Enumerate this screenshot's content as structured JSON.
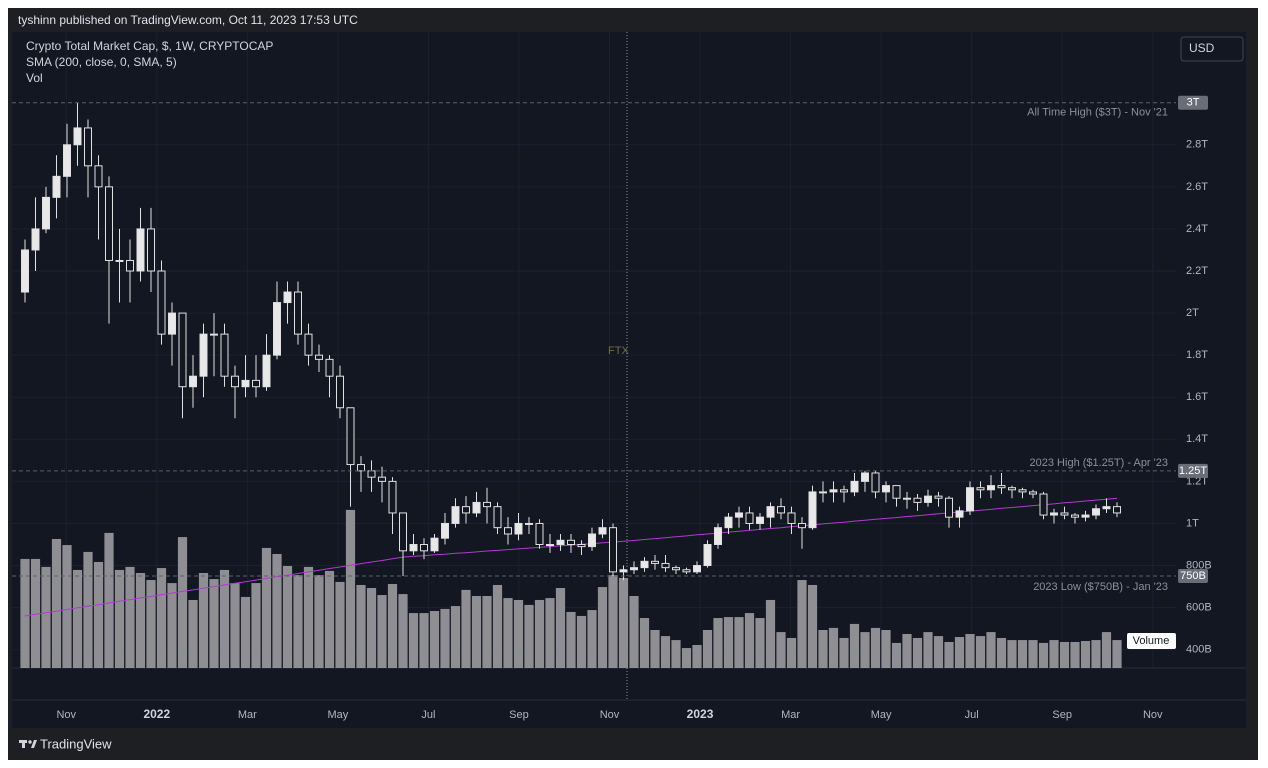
{
  "header": {
    "byline": "tyshinn published on TradingView.com, Oct 11, 2023 17:53 UTC"
  },
  "chart_data": {
    "type": "candlestick",
    "legend": [
      "Crypto Total Market Cap, $, 1W, CRYPTOCAP",
      "SMA (200, close, 0, SMA, 5)",
      "Vol"
    ],
    "currency": "USD",
    "ylim": [
      313000000000.0,
      3336000000000.0
    ],
    "yticks": [
      {
        "value": 400000000000.0,
        "label": "400B"
      },
      {
        "value": 600000000000.0,
        "label": "600B"
      },
      {
        "value": 800000000000.0,
        "label": "800B"
      },
      {
        "value": 1000000000000.0,
        "label": "1T"
      },
      {
        "value": 1200000000000.0,
        "label": "1.2T"
      },
      {
        "value": 1400000000000.0,
        "label": "1.4T"
      },
      {
        "value": 1600000000000.0,
        "label": "1.6T"
      },
      {
        "value": 1800000000000.0,
        "label": "1.8T"
      },
      {
        "value": 2000000000000.0,
        "label": "2T"
      },
      {
        "value": 2200000000000.0,
        "label": "2.2T"
      },
      {
        "value": 2400000000000.0,
        "label": "2.4T"
      },
      {
        "value": 2600000000000.0,
        "label": "2.6T"
      },
      {
        "value": 2800000000000.0,
        "label": "2.8T"
      }
    ],
    "xlim": [
      "2021-10",
      "2023-12"
    ],
    "xticks": [
      {
        "value": "2021-11",
        "label": "Nov"
      },
      {
        "value": "2022-01",
        "label": "2022"
      },
      {
        "value": "2022-03",
        "label": "Mar"
      },
      {
        "value": "2022-05",
        "label": "May"
      },
      {
        "value": "2022-07",
        "label": "Jul"
      },
      {
        "value": "2022-09",
        "label": "Sep"
      },
      {
        "value": "2022-11",
        "label": "Nov"
      },
      {
        "value": "2023-01",
        "label": "2023"
      },
      {
        "value": "2023-03",
        "label": "Mar"
      },
      {
        "value": "2023-05",
        "label": "May"
      },
      {
        "value": "2023-07",
        "label": "Jul"
      },
      {
        "value": "2023-09",
        "label": "Sep"
      },
      {
        "value": "2023-11",
        "label": "Nov"
      }
    ],
    "grid": true,
    "up_color": "#e8e8e8",
    "down_color": "#131722",
    "wick_color": "#e0e0e0",
    "candles": [
      [
        2100000000000.0,
        2350000000000.0,
        2050000000000.0,
        2300000000000.0
      ],
      [
        2300000000000.0,
        2550000000000.0,
        2200000000000.0,
        2400000000000.0
      ],
      [
        2400000000000.0,
        2600000000000.0,
        2380000000000.0,
        2550000000000.0
      ],
      [
        2550000000000.0,
        2750000000000.0,
        2450000000000.0,
        2650000000000.0
      ],
      [
        2650000000000.0,
        2900000000000.0,
        2550000000000.0,
        2800000000000.0
      ],
      [
        2800000000000.0,
        3000000000000.0,
        2700000000000.0,
        2880000000000.0
      ],
      [
        2880000000000.0,
        2920000000000.0,
        2550000000000.0,
        2700000000000.0
      ],
      [
        2700000000000.0,
        2750000000000.0,
        2350000000000.0,
        2600000000000.0
      ],
      [
        2600000000000.0,
        2650000000000.0,
        1950000000000.0,
        2250000000000.0
      ],
      [
        2250000000000.0,
        2400000000000.0,
        2050000000000.0,
        2250000000000.0
      ],
      [
        2250000000000.0,
        2350000000000.0,
        2050000000000.0,
        2200000000000.0
      ],
      [
        2200000000000.0,
        2500000000000.0,
        2150000000000.0,
        2400000000000.0
      ],
      [
        2400000000000.0,
        2500000000000.0,
        2100000000000.0,
        2200000000000.0
      ],
      [
        2200000000000.0,
        2250000000000.0,
        1850000000000.0,
        1900000000000.0
      ],
      [
        1900000000000.0,
        2050000000000.0,
        1750000000000.0,
        2000000000000.0
      ],
      [
        2000000000000.0,
        2000000000000.0,
        1500000000000.0,
        1650000000000.0
      ],
      [
        1650000000000.0,
        1800000000000.0,
        1550000000000.0,
        1700000000000.0
      ],
      [
        1700000000000.0,
        1950000000000.0,
        1600000000000.0,
        1900000000000.0
      ],
      [
        1900000000000.0,
        2000000000000.0,
        1700000000000.0,
        1900000000000.0
      ],
      [
        1900000000000.0,
        1950000000000.0,
        1650000000000.0,
        1700000000000.0
      ],
      [
        1700000000000.0,
        1750000000000.0,
        1500000000000.0,
        1650000000000.0
      ],
      [
        1650000000000.0,
        1800000000000.0,
        1600000000000.0,
        1680000000000.0
      ],
      [
        1680000000000.0,
        1800000000000.0,
        1600000000000.0,
        1650000000000.0
      ],
      [
        1650000000000.0,
        1900000000000.0,
        1630000000000.0,
        1800000000000.0
      ],
      [
        1800000000000.0,
        2150000000000.0,
        1780000000000.0,
        2050000000000.0
      ],
      [
        2050000000000.0,
        2150000000000.0,
        1950000000000.0,
        2100000000000.0
      ],
      [
        2100000000000.0,
        2150000000000.0,
        1850000000000.0,
        1900000000000.0
      ],
      [
        1900000000000.0,
        1950000000000.0,
        1750000000000.0,
        1800000000000.0
      ],
      [
        1800000000000.0,
        1850000000000.0,
        1720000000000.0,
        1780000000000.0
      ],
      [
        1780000000000.0,
        1800000000000.0,
        1600000000000.0,
        1700000000000.0
      ],
      [
        1700000000000.0,
        1750000000000.0,
        1500000000000.0,
        1550000000000.0
      ],
      [
        1550000000000.0,
        1550000000000.0,
        1080000000000.0,
        1280000000000.0
      ],
      [
        1280000000000.0,
        1320000000000.0,
        1150000000000.0,
        1250000000000.0
      ],
      [
        1250000000000.0,
        1300000000000.0,
        1150000000000.0,
        1220000000000.0
      ],
      [
        1220000000000.0,
        1270000000000.0,
        1100000000000.0,
        1200000000000.0
      ],
      [
        1200000000000.0,
        1220000000000.0,
        950000000000.0,
        1050000000000.0
      ],
      [
        1050000000000.0,
        1050000000000.0,
        750000000000.0,
        870000000000.0
      ],
      [
        870000000000.0,
        950000000000.0,
        850000000000.0,
        900000000000.0
      ],
      [
        900000000000.0,
        930000000000.0,
        830000000000.0,
        870000000000.0
      ],
      [
        870000000000.0,
        950000000000.0,
        860000000000.0,
        930000000000.0
      ],
      [
        930000000000.0,
        1050000000000.0,
        900000000000.0,
        1000000000000.0
      ],
      [
        1000000000000.0,
        1120000000000.0,
        980000000000.0,
        1080000000000.0
      ],
      [
        1080000000000.0,
        1130000000000.0,
        1000000000000.0,
        1050000000000.0
      ],
      [
        1050000000000.0,
        1150000000000.0,
        1030000000000.0,
        1100000000000.0
      ],
      [
        1100000000000.0,
        1170000000000.0,
        1000000000000.0,
        1080000000000.0
      ],
      [
        1080000000000.0,
        1100000000000.0,
        950000000000.0,
        980000000000.0
      ],
      [
        980000000000.0,
        1030000000000.0,
        900000000000.0,
        950000000000.0
      ],
      [
        950000000000.0,
        1050000000000.0,
        920000000000.0,
        1000000000000.0
      ],
      [
        1000000000000.0,
        1030000000000.0,
        950000000000.0,
        1000000000000.0
      ],
      [
        1000000000000.0,
        1020000000000.0,
        880000000000.0,
        900000000000.0
      ],
      [
        900000000000.0,
        950000000000.0,
        860000000000.0,
        900000000000.0
      ],
      [
        900000000000.0,
        950000000000.0,
        870000000000.0,
        920000000000.0
      ],
      [
        920000000000.0,
        950000000000.0,
        860000000000.0,
        900000000000.0
      ],
      [
        900000000000.0,
        920000000000.0,
        850000000000.0,
        890000000000.0
      ],
      [
        890000000000.0,
        980000000000.0,
        870000000000.0,
        950000000000.0
      ],
      [
        950000000000.0,
        1020000000000.0,
        930000000000.0,
        980000000000.0
      ],
      [
        980000000000.0,
        1000000000000.0,
        750000000000.0,
        770000000000.0
      ],
      [
        770000000000.0,
        800000000000.0,
        730000000000.0,
        780000000000.0
      ],
      [
        780000000000.0,
        820000000000.0,
        760000000000.0,
        790000000000.0
      ],
      [
        790000000000.0,
        840000000000.0,
        770000000000.0,
        820000000000.0
      ],
      [
        820000000000.0,
        850000000000.0,
        780000000000.0,
        810000000000.0
      ],
      [
        810000000000.0,
        850000000000.0,
        770000000000.0,
        790000000000.0
      ],
      [
        790000000000.0,
        800000000000.0,
        760000000000.0,
        780000000000.0
      ],
      [
        780000000000.0,
        790000000000.0,
        760000000000.0,
        770000000000.0
      ],
      [
        770000000000.0,
        820000000000.0,
        760000000000.0,
        800000000000.0
      ],
      [
        800000000000.0,
        920000000000.0,
        790000000000.0,
        900000000000.0
      ],
      [
        900000000000.0,
        1000000000000.0,
        880000000000.0,
        980000000000.0
      ],
      [
        980000000000.0,
        1050000000000.0,
        950000000000.0,
        1030000000000.0
      ],
      [
        1030000000000.0,
        1080000000000.0,
        980000000000.0,
        1050000000000.0
      ],
      [
        1050000000000.0,
        1080000000000.0,
        970000000000.0,
        1000000000000.0
      ],
      [
        1000000000000.0,
        1050000000000.0,
        970000000000.0,
        1030000000000.0
      ],
      [
        1030000000000.0,
        1100000000000.0,
        980000000000.0,
        1080000000000.0
      ],
      [
        1080000000000.0,
        1120000000000.0,
        1020000000000.0,
        1050000000000.0
      ],
      [
        1050000000000.0,
        1080000000000.0,
        950000000000.0,
        1000000000000.0
      ],
      [
        1000000000000.0,
        1030000000000.0,
        880000000000.0,
        980000000000.0
      ],
      [
        980000000000.0,
        1180000000000.0,
        970000000000.0,
        1150000000000.0
      ],
      [
        1150000000000.0,
        1200000000000.0,
        1100000000000.0,
        1150000000000.0
      ],
      [
        1150000000000.0,
        1200000000000.0,
        1100000000000.0,
        1160000000000.0
      ],
      [
        1160000000000.0,
        1180000000000.0,
        1100000000000.0,
        1150000000000.0
      ],
      [
        1150000000000.0,
        1240000000000.0,
        1130000000000.0,
        1200000000000.0
      ],
      [
        1200000000000.0,
        1250000000000.0,
        1150000000000.0,
        1240000000000.0
      ],
      [
        1240000000000.0,
        1250000000000.0,
        1120000000000.0,
        1150000000000.0
      ],
      [
        1150000000000.0,
        1200000000000.0,
        1100000000000.0,
        1180000000000.0
      ],
      [
        1180000000000.0,
        1180000000000.0,
        1080000000000.0,
        1120000000000.0
      ],
      [
        1120000000000.0,
        1150000000000.0,
        1070000000000.0,
        1120000000000.0
      ],
      [
        1120000000000.0,
        1140000000000.0,
        1060000000000.0,
        1100000000000.0
      ],
      [
        1100000000000.0,
        1160000000000.0,
        1080000000000.0,
        1130000000000.0
      ],
      [
        1130000000000.0,
        1150000000000.0,
        1080000000000.0,
        1120000000000.0
      ],
      [
        1120000000000.0,
        1130000000000.0,
        980000000000.0,
        1030000000000.0
      ],
      [
        1030000000000.0,
        1080000000000.0,
        980000000000.0,
        1060000000000.0
      ],
      [
        1060000000000.0,
        1200000000000.0,
        1040000000000.0,
        1170000000000.0
      ],
      [
        1170000000000.0,
        1200000000000.0,
        1120000000000.0,
        1160000000000.0
      ],
      [
        1160000000000.0,
        1230000000000.0,
        1120000000000.0,
        1180000000000.0
      ],
      [
        1180000000000.0,
        1240000000000.0,
        1140000000000.0,
        1170000000000.0
      ],
      [
        1170000000000.0,
        1180000000000.0,
        1120000000000.0,
        1160000000000.0
      ],
      [
        1160000000000.0,
        1170000000000.0,
        1120000000000.0,
        1150000000000.0
      ],
      [
        1150000000000.0,
        1160000000000.0,
        1120000000000.0,
        1140000000000.0
      ],
      [
        1140000000000.0,
        1150000000000.0,
        1020000000000.0,
        1040000000000.0
      ],
      [
        1040000000000.0,
        1070000000000.0,
        1000000000000.0,
        1050000000000.0
      ],
      [
        1050000000000.0,
        1080000000000.0,
        1020000000000.0,
        1040000000000.0
      ],
      [
        1040000000000.0,
        1050000000000.0,
        1000000000000.0,
        1030000000000.0
      ],
      [
        1030000000000.0,
        1060000000000.0,
        1010000000000.0,
        1040000000000.0
      ],
      [
        1040000000000.0,
        1090000000000.0,
        1020000000000.0,
        1070000000000.0
      ],
      [
        1070000000000.0,
        1120000000000.0,
        1050000000000.0,
        1080000000000.0
      ],
      [
        1080000000000.0,
        1100000000000.0,
        1030000000000.0,
        1050000000000.0
      ]
    ],
    "sma": {
      "color": "#b03ad0",
      "values": [
        560000000000.0,
        568000000000.0,
        576000000000.0,
        583000000000.0,
        591000000000.0,
        599000000000.0,
        607000000000.0,
        614000000000.0,
        622000000000.0,
        630000000000.0,
        638000000000.0,
        646000000000.0,
        653000000000.0,
        661000000000.0,
        669000000000.0,
        677000000000.0,
        684000000000.0,
        692000000000.0,
        700000000000.0,
        708000000000.0,
        716000000000.0,
        723000000000.0,
        731000000000.0,
        739000000000.0,
        747000000000.0,
        754000000000.0,
        762000000000.0,
        770000000000.0,
        778000000000.0,
        786000000000.0,
        793000000000.0,
        801000000000.0,
        809000000000.0,
        817000000000.0,
        824000000000.0,
        832000000000.0,
        840000000000.0,
        844000000000.0,
        847000000000.0,
        851000000000.0,
        854000000000.0,
        858000000000.0,
        861000000000.0,
        865000000000.0,
        869000000000.0,
        872000000000.0,
        876000000000.0,
        879000000000.0,
        883000000000.0,
        886000000000.0,
        890000000000.0,
        894000000000.0,
        897000000000.0,
        901000000000.0,
        904000000000.0,
        908000000000.0,
        911000000000.0,
        915000000000.0,
        919000000000.0,
        924000000000.0,
        928000000000.0,
        932000000000.0,
        937000000000.0,
        941000000000.0,
        946000000000.0,
        950000000000.0,
        954000000000.0,
        959000000000.0,
        963000000000.0,
        967000000000.0,
        972000000000.0,
        976000000000.0,
        980000000000.0,
        985000000000.0,
        989000000000.0,
        993000000000.0,
        998000000000.0,
        1002000000000.0,
        1006000000000.0,
        1011000000000.0,
        1015000000000.0,
        1020000000000.0,
        1024000000000.0,
        1028000000000.0,
        1033000000000.0,
        1037000000000.0,
        1041000000000.0,
        1046000000000.0,
        1050000000000.0,
        1054000000000.0,
        1059000000000.0,
        1063000000000.0,
        1067000000000.0,
        1072000000000.0,
        1076000000000.0,
        1080000000000.0,
        1085000000000.0,
        1089000000000.0,
        1093000000000.0,
        1098000000000.0,
        1102000000000.0,
        1107000000000.0,
        1111000000000.0,
        1115000000000.0,
        1120000000000.0
      ]
    },
    "volume": {
      "name": "Volume",
      "color": "#8f8f93",
      "ylim": [
        0,
        1000
      ],
      "values": [
        574,
        574,
        532,
        679,
        647,
        516,
        611,
        558,
        711,
        516,
        532,
        500,
        463,
        526,
        447,
        689,
        358,
        500,
        468,
        516,
        447,
        374,
        447,
        632,
        600,
        537,
        489,
        532,
        489,
        511,
        453,
        832,
        437,
        421,
        384,
        442,
        389,
        289,
        289,
        300,
        311,
        326,
        411,
        379,
        379,
        437,
        368,
        358,
        332,
        358,
        368,
        421,
        295,
        274,
        305,
        426,
        489,
        474,
        379,
        263,
        200,
        168,
        147,
        105,
        121,
        200,
        263,
        268,
        268,
        289,
        263,
        358,
        189,
        158,
        463,
        437,
        200,
        211,
        158,
        232,
        189,
        211,
        200,
        132,
        179,
        158,
        189,
        168,
        137,
        163,
        179,
        168,
        189,
        158,
        147,
        147,
        147,
        132,
        147,
        137,
        137,
        142,
        147,
        189,
        147
      ]
    },
    "levels": [
      {
        "value": 3000000000000.0,
        "label": "3T",
        "text": "All Time High ($3T) - Nov '21"
      },
      {
        "value": 1250000000000.0,
        "label": "1.25T",
        "text": "2023 High ($1.25T) - Apr '23"
      },
      {
        "value": 750000000000.0,
        "label": "750B",
        "text": "2023 Low ($750B) - Jan '23"
      }
    ],
    "events": [
      {
        "label": "FTX"
      }
    ]
  },
  "footer": {
    "brand": "TradingView"
  }
}
